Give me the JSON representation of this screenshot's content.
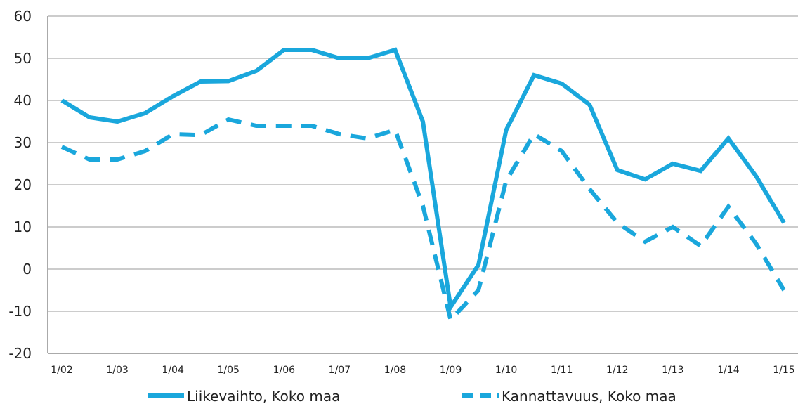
{
  "chart_data": {
    "type": "line",
    "title": "",
    "xlabel": "",
    "ylabel": "",
    "ylim": [
      -20,
      60
    ],
    "yticks": [
      -20,
      -10,
      0,
      10,
      20,
      30,
      40,
      50,
      60
    ],
    "y_tick_labels": [
      "-20",
      "-10",
      "0",
      "10",
      "20",
      "30",
      "40",
      "50",
      "60"
    ],
    "categories": [
      "1/02",
      "",
      "1/03",
      "",
      "1/04",
      "",
      "1/05",
      "",
      "1/06",
      "",
      "1/07",
      "",
      "1/08",
      "",
      "1/09",
      "",
      "1/10",
      "",
      "1/11",
      "",
      "1/12",
      "",
      "1/13",
      "",
      "1/14",
      "",
      "1/15"
    ],
    "x_tick_labels": [
      "1/02",
      "1/03",
      "1/04",
      "1/05",
      "1/06",
      "1/07",
      "1/08",
      "1/09",
      "1/10",
      "1/11",
      "1/12",
      "1/13",
      "1/14",
      "1/15"
    ],
    "grid": true,
    "legend_position": "bottom",
    "series": [
      {
        "name": "Liikevaihto, Koko maa",
        "style": "solid",
        "color": "#1aa7dc",
        "values": [
          40,
          36,
          35,
          37,
          41,
          44.5,
          44.6,
          47,
          52,
          52,
          50,
          50,
          52,
          35,
          -9,
          1,
          33,
          46,
          44,
          39,
          23.5,
          21.3,
          25,
          23.3,
          31,
          22,
          11
        ]
      },
      {
        "name": "Kannattavuus, Koko maa",
        "style": "dashed",
        "color": "#1aa7dc",
        "values": [
          29,
          26,
          26,
          28,
          32,
          31.8,
          35.5,
          34,
          34,
          34,
          32,
          31,
          33,
          15,
          -12,
          -5,
          21,
          32,
          28,
          19,
          11,
          6.5,
          10,
          5.5,
          14.8,
          6,
          -5
        ]
      }
    ]
  }
}
